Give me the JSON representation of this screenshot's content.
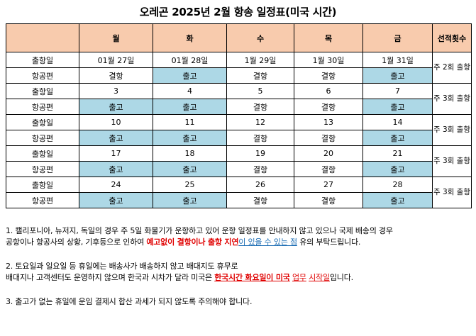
{
  "title": "오레곤 2025년 2월 항송 일정표(미국 시간)",
  "header": [
    "",
    "월",
    "화",
    "수",
    "목",
    "금",
    "선적횟수"
  ],
  "row_labels": {
    "date": "출항일",
    "flight": "항공편"
  },
  "weeks": [
    {
      "dates": [
        "01월 27일",
        "01월 28일",
        "1월 29일",
        "1월 30일",
        "1월 31일"
      ],
      "flights": [
        "결항",
        "출고",
        "결항",
        "결항",
        "출고"
      ],
      "count": "주 2회 출항"
    },
    {
      "dates": [
        "3",
        "4",
        "5",
        "6",
        "7"
      ],
      "flights": [
        "출고",
        "출고",
        "결항",
        "결항",
        "출고"
      ],
      "count": "주 3회 출항"
    },
    {
      "dates": [
        "10",
        "11",
        "12",
        "13",
        "14"
      ],
      "flights": [
        "출고",
        "출고",
        "결항",
        "결항",
        "출고"
      ],
      "count": "주 3회 출항"
    },
    {
      "dates": [
        "17",
        "18",
        "19",
        "20",
        "21"
      ],
      "flights": [
        "출고",
        "출고",
        "결항",
        "결항",
        "출고"
      ],
      "count": "주 3회 출항"
    },
    {
      "dates": [
        "24",
        "25",
        "26",
        "27",
        "28"
      ],
      "flights": [
        "출고",
        "출고",
        "결항",
        "결항",
        "출고"
      ],
      "count": "주 3회 출항"
    }
  ],
  "colors": {
    "header_bg": "#f8cbad",
    "departure_bg": "#add8e6",
    "emphasis_red": "#e00000",
    "emphasis_blue": "#1f6fb5"
  },
  "notes": {
    "n1_line1": "1. 캘리포니아, 뉴저지, 독일의 경우 주 5일 화물기가 운항하고 있어 운항 일정표를 안내하지 않고 있으나 국제 배송의 경우",
    "n1_line2_a": "공항이나 항공사의 상황, 기후등으로 인하여 ",
    "n1_line2_red": "예고없이 결항이나 출항 지연",
    "n1_line2_blue": "이 있을 수 있는 점",
    "n1_line2_b": " 유의 부탁드립니다.",
    "n2_line1": "2. 토요일과 일요일 등 휴일에는 배송사가 배송하지 않고 배대지도 휴무로",
    "n2_line2_a": "배대지나 고객센터도 운영하지 않으며 한국과 시차가 달라 미국은 ",
    "n2_line2_red": "한국시간 화요일이 미국",
    "n2_line2_mid": " ",
    "n2_line2_redu1": "업무",
    "n2_line2_mid2": " ",
    "n2_line2_redu2": "시작일",
    "n2_line2_b": "입니다.",
    "n3": "3. 출고가 없는 휴일에 운임 결제시 합산 과세가 되지 않도록 주의해야 합니다."
  }
}
